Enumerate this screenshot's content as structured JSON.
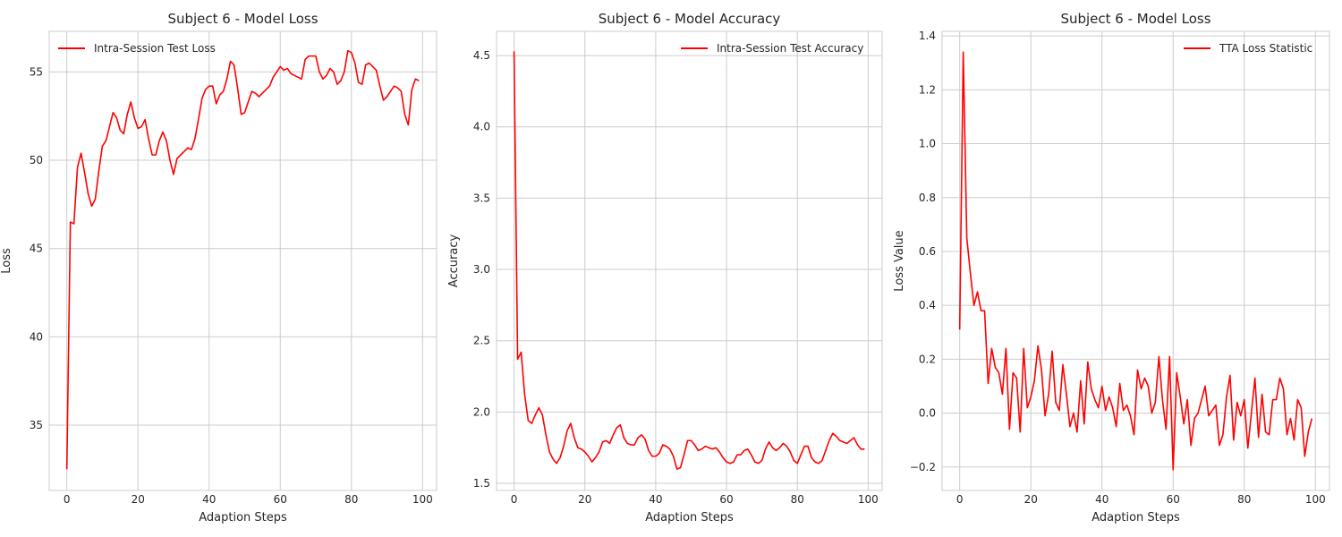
{
  "chart_data": [
    {
      "type": "line",
      "title": "Subject 6 - Model Loss",
      "xlabel": "Adaption Steps",
      "ylabel": "Loss",
      "xlim": [
        -4.95,
        103.95
      ],
      "ylim": [
        31.3,
        57.3
      ],
      "xticks": [
        0,
        20,
        40,
        60,
        80,
        100
      ],
      "yticks": [
        35,
        40,
        45,
        50,
        55
      ],
      "ytick_labels": [
        "35",
        "40",
        "45",
        "50",
        "55"
      ],
      "grid": true,
      "legend_position": "upper-left",
      "series": [
        {
          "name": "Intra-Session Test Loss",
          "color": "#ff0000",
          "x": [
            0,
            1,
            2,
            3,
            4,
            5,
            6,
            7,
            8,
            9,
            10,
            11,
            12,
            13,
            14,
            15,
            16,
            17,
            18,
            19,
            20,
            21,
            22,
            23,
            24,
            25,
            26,
            27,
            28,
            29,
            30,
            31,
            32,
            33,
            34,
            35,
            36,
            37,
            38,
            39,
            40,
            41,
            42,
            43,
            44,
            45,
            46,
            47,
            48,
            49,
            50,
            51,
            52,
            53,
            54,
            55,
            56,
            57,
            58,
            59,
            60,
            61,
            62,
            63,
            64,
            65,
            66,
            67,
            68,
            69,
            70,
            71,
            72,
            73,
            74,
            75,
            76,
            77,
            78,
            79,
            80,
            81,
            82,
            83,
            84,
            85,
            86,
            87,
            88,
            89,
            90,
            91,
            92,
            93,
            94,
            95,
            96,
            97,
            98,
            99
          ],
          "y": [
            32.5,
            46.5,
            46.4,
            49.6,
            50.4,
            49.3,
            48.1,
            47.4,
            47.8,
            49.4,
            50.8,
            51.1,
            51.9,
            52.7,
            52.4,
            51.7,
            51.5,
            52.6,
            53.3,
            52.4,
            51.8,
            51.9,
            52.3,
            51.2,
            50.3,
            50.3,
            51.1,
            51.6,
            51.1,
            50.0,
            49.2,
            50.1,
            50.3,
            50.5,
            50.7,
            50.6,
            51.2,
            52.3,
            53.5,
            54.0,
            54.2,
            54.2,
            53.2,
            53.7,
            53.9,
            54.6,
            55.6,
            55.4,
            54.1,
            52.6,
            52.7,
            53.3,
            53.9,
            53.8,
            53.6,
            53.8,
            54.0,
            54.2,
            54.7,
            55.0,
            55.3,
            55.1,
            55.2,
            54.9,
            54.8,
            54.7,
            54.6,
            55.7,
            55.9,
            55.9,
            55.9,
            55.0,
            54.6,
            54.8,
            55.2,
            55.0,
            54.3,
            54.5,
            55.0,
            56.2,
            56.1,
            55.5,
            54.4,
            54.3,
            55.4,
            55.5,
            55.3,
            55.1,
            54.2,
            53.4,
            53.6,
            53.9,
            54.2,
            54.1,
            53.9,
            52.6,
            52.0,
            54.0,
            54.6,
            54.5
          ]
        }
      ]
    },
    {
      "type": "line",
      "title": "Subject 6 - Model Accuracy",
      "xlabel": "Adaption Steps",
      "ylabel": "Accuracy",
      "xlim": [
        -4.95,
        103.95
      ],
      "ylim": [
        1.45,
        4.67
      ],
      "xticks": [
        0,
        20,
        40,
        60,
        80,
        100
      ],
      "yticks": [
        1.5,
        2.0,
        2.5,
        3.0,
        3.5,
        4.0,
        4.5
      ],
      "ytick_labels": [
        "1.5",
        "2.0",
        "2.5",
        "3.0",
        "3.5",
        "4.0",
        "4.5"
      ],
      "grid": true,
      "legend_position": "upper-right",
      "series": [
        {
          "name": "Intra-Session Test Accuracy",
          "color": "#ff0000",
          "x": [
            0,
            1,
            2,
            3,
            4,
            5,
            6,
            7,
            8,
            9,
            10,
            11,
            12,
            13,
            14,
            15,
            16,
            17,
            18,
            19,
            20,
            21,
            22,
            23,
            24,
            25,
            26,
            27,
            28,
            29,
            30,
            31,
            32,
            33,
            34,
            35,
            36,
            37,
            38,
            39,
            40,
            41,
            42,
            43,
            44,
            45,
            46,
            47,
            48,
            49,
            50,
            51,
            52,
            53,
            54,
            55,
            56,
            57,
            58,
            59,
            60,
            61,
            62,
            63,
            64,
            65,
            66,
            67,
            68,
            69,
            70,
            71,
            72,
            73,
            74,
            75,
            76,
            77,
            78,
            79,
            80,
            81,
            82,
            83,
            84,
            85,
            86,
            87,
            88,
            89,
            90,
            91,
            92,
            93,
            94,
            95,
            96,
            97,
            98,
            99
          ],
          "y": [
            4.53,
            2.37,
            2.42,
            2.12,
            1.94,
            1.92,
            1.98,
            2.03,
            1.98,
            1.84,
            1.72,
            1.67,
            1.64,
            1.68,
            1.76,
            1.87,
            1.92,
            1.82,
            1.75,
            1.74,
            1.72,
            1.69,
            1.65,
            1.68,
            1.72,
            1.79,
            1.8,
            1.78,
            1.84,
            1.89,
            1.91,
            1.82,
            1.78,
            1.77,
            1.77,
            1.82,
            1.84,
            1.81,
            1.73,
            1.69,
            1.69,
            1.71,
            1.77,
            1.76,
            1.74,
            1.69,
            1.6,
            1.61,
            1.7,
            1.8,
            1.8,
            1.77,
            1.73,
            1.74,
            1.76,
            1.75,
            1.74,
            1.75,
            1.72,
            1.68,
            1.65,
            1.64,
            1.65,
            1.7,
            1.7,
            1.73,
            1.74,
            1.7,
            1.65,
            1.64,
            1.66,
            1.74,
            1.79,
            1.75,
            1.73,
            1.75,
            1.78,
            1.76,
            1.72,
            1.66,
            1.64,
            1.7,
            1.76,
            1.76,
            1.68,
            1.65,
            1.64,
            1.66,
            1.73,
            1.8,
            1.85,
            1.83,
            1.8,
            1.79,
            1.78,
            1.8,
            1.82,
            1.77,
            1.74,
            1.74
          ]
        }
      ]
    },
    {
      "type": "line",
      "title": "Subject 6 - Model Loss",
      "xlabel": "Adaption Steps",
      "ylabel": "Loss Value",
      "xlim": [
        -4.95,
        103.95
      ],
      "ylim": [
        -0.287,
        1.417
      ],
      "xticks": [
        0,
        20,
        40,
        60,
        80,
        100
      ],
      "yticks": [
        -0.2,
        0.0,
        0.2,
        0.4,
        0.6,
        0.8,
        1.0,
        1.2,
        1.4
      ],
      "ytick_labels": [
        "−0.2",
        "0.0",
        "0.2",
        "0.4",
        "0.6",
        "0.8",
        "1.0",
        "1.2",
        "1.4"
      ],
      "grid": true,
      "legend_position": "upper-right",
      "series": [
        {
          "name": "TTA Loss Statistic",
          "color": "#ff0000",
          "x": [
            0,
            1,
            2,
            3,
            4,
            5,
            6,
            7,
            8,
            9,
            10,
            11,
            12,
            13,
            14,
            15,
            16,
            17,
            18,
            19,
            20,
            21,
            22,
            23,
            24,
            25,
            26,
            27,
            28,
            29,
            30,
            31,
            32,
            33,
            34,
            35,
            36,
            37,
            38,
            39,
            40,
            41,
            42,
            43,
            44,
            45,
            46,
            47,
            48,
            49,
            50,
            51,
            52,
            53,
            54,
            55,
            56,
            57,
            58,
            59,
            60,
            61,
            62,
            63,
            64,
            65,
            66,
            67,
            68,
            69,
            70,
            71,
            72,
            73,
            74,
            75,
            76,
            77,
            78,
            79,
            80,
            81,
            82,
            83,
            84,
            85,
            86,
            87,
            88,
            89,
            90,
            91,
            92,
            93,
            94,
            95,
            96,
            97,
            98,
            99
          ],
          "y": [
            0.31,
            1.34,
            0.65,
            0.52,
            0.4,
            0.45,
            0.38,
            0.38,
            0.11,
            0.24,
            0.17,
            0.15,
            0.07,
            0.24,
            -0.06,
            0.15,
            0.13,
            -0.07,
            0.24,
            0.02,
            0.06,
            0.12,
            0.25,
            0.16,
            -0.01,
            0.07,
            0.23,
            0.04,
            0.01,
            0.18,
            0.07,
            -0.05,
            0.0,
            -0.07,
            0.12,
            -0.04,
            0.19,
            0.09,
            0.05,
            0.02,
            0.1,
            0.01,
            0.06,
            0.02,
            -0.05,
            0.11,
            0.01,
            0.03,
            -0.01,
            -0.08,
            0.16,
            0.09,
            0.13,
            0.1,
            0.0,
            0.04,
            0.21,
            0.05,
            -0.06,
            0.21,
            -0.21,
            0.15,
            0.06,
            -0.04,
            0.05,
            -0.12,
            -0.02,
            0.0,
            0.05,
            0.1,
            -0.01,
            0.01,
            0.03,
            -0.12,
            -0.08,
            0.06,
            0.14,
            -0.1,
            0.04,
            -0.01,
            0.05,
            -0.13,
            0.0,
            0.13,
            -0.09,
            0.07,
            -0.07,
            -0.08,
            0.05,
            0.05,
            0.13,
            0.09,
            -0.08,
            -0.02,
            -0.1,
            0.05,
            0.02,
            -0.16,
            -0.07,
            -0.02
          ]
        }
      ]
    }
  ]
}
